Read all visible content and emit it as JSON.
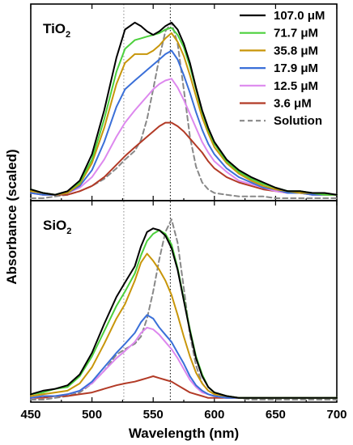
{
  "chart_data": {
    "type": "line",
    "x_axis": {
      "label": "Wavelength (nm)",
      "range": [
        450,
        700
      ],
      "ticks": [
        450,
        500,
        550,
        600,
        650,
        700
      ]
    },
    "y_axis_label": "Absorbance (scaled)",
    "reference_lines": [
      {
        "x": 526,
        "color": "#8a8a8a"
      },
      {
        "x": 564,
        "color": "#000000"
      }
    ],
    "legend": {
      "placement": "top-right (TiO2 panel)",
      "entries": [
        {
          "label": "107.0 μM",
          "color": "#000000",
          "dashed": false
        },
        {
          "label": "71.7 μM",
          "color": "#4cd03c",
          "dashed": false
        },
        {
          "label": "35.8 μM",
          "color": "#c8960a",
          "dashed": false
        },
        {
          "label": "17.9 μM",
          "color": "#3a6fd8",
          "dashed": false
        },
        {
          "label": "12.5 μM",
          "color": "#dd88ee",
          "dashed": false
        },
        {
          "label": "3.6 μM",
          "color": "#b23a26",
          "dashed": false
        },
        {
          "label": "Solution",
          "color": "#888888",
          "dashed": true
        }
      ]
    },
    "panels": [
      {
        "label_base": "TiO",
        "label_sub": "2",
        "ylim": [
          0,
          1.05
        ],
        "x": [
          450,
          460,
          470,
          480,
          490,
          500,
          510,
          520,
          527,
          535,
          540,
          545,
          550,
          555,
          560,
          565,
          570,
          575,
          580,
          585,
          590,
          595,
          600,
          610,
          620,
          630,
          640,
          650,
          660,
          670,
          680,
          690,
          700
        ],
        "series": [
          {
            "name": "107.0 μM",
            "color": "#000000",
            "dashed": false,
            "values": [
              0.05,
              0.03,
              0.02,
              0.04,
              0.1,
              0.25,
              0.5,
              0.8,
              0.96,
              1.0,
              0.98,
              0.95,
              0.93,
              0.95,
              0.98,
              1.0,
              0.96,
              0.88,
              0.77,
              0.63,
              0.5,
              0.4,
              0.32,
              0.22,
              0.16,
              0.12,
              0.09,
              0.06,
              0.04,
              0.04,
              0.03,
              0.03,
              0.02
            ]
          },
          {
            "name": "71.7 μM",
            "color": "#4cd03c",
            "dashed": false,
            "values": [
              0.05,
              0.03,
              0.02,
              0.04,
              0.09,
              0.22,
              0.45,
              0.72,
              0.85,
              0.9,
              0.91,
              0.92,
              0.93,
              0.94,
              0.96,
              0.97,
              0.93,
              0.86,
              0.75,
              0.62,
              0.49,
              0.39,
              0.31,
              0.21,
              0.15,
              0.11,
              0.08,
              0.06,
              0.04,
              0.04,
              0.03,
              0.02,
              0.02
            ]
          },
          {
            "name": "35.8 μM",
            "color": "#c8960a",
            "dashed": false,
            "values": [
              0.04,
              0.03,
              0.02,
              0.03,
              0.08,
              0.2,
              0.4,
              0.65,
              0.77,
              0.82,
              0.82,
              0.82,
              0.84,
              0.87,
              0.91,
              0.94,
              0.89,
              0.81,
              0.7,
              0.58,
              0.46,
              0.37,
              0.29,
              0.2,
              0.14,
              0.1,
              0.07,
              0.05,
              0.04,
              0.03,
              0.03,
              0.02,
              0.02
            ]
          },
          {
            "name": "17.9 μM",
            "color": "#3a6fd8",
            "dashed": false,
            "values": [
              0.03,
              0.02,
              0.02,
              0.03,
              0.07,
              0.16,
              0.32,
              0.52,
              0.62,
              0.67,
              0.7,
              0.73,
              0.76,
              0.79,
              0.82,
              0.84,
              0.79,
              0.7,
              0.6,
              0.49,
              0.39,
              0.31,
              0.25,
              0.17,
              0.12,
              0.09,
              0.06,
              0.05,
              0.03,
              0.03,
              0.02,
              0.02,
              0.02
            ]
          },
          {
            "name": "12.5 μM",
            "color": "#dd88ee",
            "dashed": false,
            "values": [
              0.03,
              0.02,
              0.02,
              0.03,
              0.06,
              0.12,
              0.22,
              0.35,
              0.43,
              0.5,
              0.54,
              0.58,
              0.62,
              0.65,
              0.67,
              0.68,
              0.63,
              0.56,
              0.48,
              0.4,
              0.32,
              0.26,
              0.21,
              0.15,
              0.1,
              0.08,
              0.06,
              0.04,
              0.03,
              0.03,
              0.02,
              0.02,
              0.02
            ]
          },
          {
            "name": "3.6 μM",
            "color": "#b23a26",
            "dashed": false,
            "values": [
              0.03,
              0.02,
              0.02,
              0.02,
              0.04,
              0.07,
              0.12,
              0.19,
              0.24,
              0.29,
              0.32,
              0.35,
              0.38,
              0.41,
              0.43,
              0.43,
              0.41,
              0.38,
              0.34,
              0.3,
              0.26,
              0.21,
              0.17,
              0.12,
              0.09,
              0.07,
              0.05,
              0.04,
              0.03,
              0.03,
              0.02,
              0.02,
              0.02
            ]
          },
          {
            "name": "Solution",
            "color": "#888888",
            "dashed": true,
            "values": [
              0.0,
              0.0,
              0.01,
              0.02,
              0.04,
              0.07,
              0.11,
              0.17,
              0.22,
              0.27,
              0.33,
              0.45,
              0.62,
              0.8,
              0.95,
              1.0,
              0.88,
              0.62,
              0.35,
              0.18,
              0.09,
              0.05,
              0.03,
              0.02,
              0.01,
              0.01,
              0.01,
              0.0,
              0.0,
              0.0,
              0.0,
              0.0,
              0.0
            ]
          }
        ]
      },
      {
        "label_base": "SiO",
        "label_sub": "2",
        "ylim": [
          0,
          1.05
        ],
        "x": [
          450,
          460,
          470,
          480,
          490,
          500,
          510,
          520,
          527,
          535,
          540,
          545,
          550,
          555,
          560,
          565,
          570,
          575,
          580,
          585,
          590,
          595,
          600,
          610,
          620,
          630,
          640,
          650,
          660,
          670,
          680,
          690,
          700
        ],
        "series": [
          {
            "name": "107.0 μM",
            "color": "#000000",
            "dashed": false,
            "values": [
              0.03,
              0.05,
              0.06,
              0.08,
              0.14,
              0.26,
              0.42,
              0.57,
              0.65,
              0.74,
              0.85,
              0.93,
              0.95,
              0.94,
              0.91,
              0.84,
              0.72,
              0.55,
              0.38,
              0.23,
              0.13,
              0.07,
              0.04,
              0.02,
              0.01,
              0.01,
              0.01,
              0.01,
              0.01,
              0.01,
              0.01,
              0.01,
              0.01
            ]
          },
          {
            "name": "71.7 μM",
            "color": "#4cd03c",
            "dashed": false,
            "values": [
              0.03,
              0.04,
              0.06,
              0.07,
              0.13,
              0.24,
              0.38,
              0.52,
              0.6,
              0.7,
              0.8,
              0.88,
              0.92,
              0.94,
              0.92,
              0.86,
              0.73,
              0.56,
              0.39,
              0.24,
              0.14,
              0.07,
              0.04,
              0.02,
              0.01,
              0.01,
              0.01,
              0.01,
              0.01,
              0.01,
              0.01,
              0.01,
              0.01
            ]
          },
          {
            "name": "35.8 μM",
            "color": "#c8960a",
            "dashed": false,
            "values": [
              0.02,
              0.03,
              0.04,
              0.05,
              0.09,
              0.18,
              0.31,
              0.45,
              0.53,
              0.66,
              0.76,
              0.81,
              0.77,
              0.72,
              0.66,
              0.58,
              0.47,
              0.35,
              0.24,
              0.15,
              0.09,
              0.05,
              0.03,
              0.02,
              0.01,
              0.01,
              0.01,
              0.01,
              0.01,
              0.01,
              0.01,
              0.01,
              0.01
            ]
          },
          {
            "name": "17.9 μM",
            "color": "#3a6fd8",
            "dashed": false,
            "values": [
              0.01,
              0.02,
              0.02,
              0.03,
              0.05,
              0.1,
              0.18,
              0.26,
              0.31,
              0.37,
              0.43,
              0.47,
              0.45,
              0.4,
              0.36,
              0.32,
              0.26,
              0.2,
              0.13,
              0.08,
              0.05,
              0.03,
              0.02,
              0.01,
              0.01,
              0.01,
              0.01,
              0.01,
              0.01,
              0.01,
              0.01,
              0.01,
              0.01
            ]
          },
          {
            "name": "12.5 μM",
            "color": "#dd88ee",
            "dashed": false,
            "values": [
              0.01,
              0.02,
              0.02,
              0.03,
              0.05,
              0.09,
              0.16,
              0.23,
              0.27,
              0.32,
              0.37,
              0.4,
              0.39,
              0.36,
              0.32,
              0.28,
              0.23,
              0.17,
              0.11,
              0.07,
              0.04,
              0.03,
              0.02,
              0.01,
              0.01,
              0.01,
              0.01,
              0.01,
              0.01,
              0.01,
              0.01,
              0.01,
              0.01
            ]
          },
          {
            "name": "3.6 μM",
            "color": "#b23a26",
            "dashed": false,
            "values": [
              0.01,
              0.01,
              0.02,
              0.02,
              0.03,
              0.04,
              0.06,
              0.08,
              0.09,
              0.1,
              0.11,
              0.12,
              0.13,
              0.12,
              0.11,
              0.1,
              0.08,
              0.06,
              0.04,
              0.03,
              0.02,
              0.01,
              0.01,
              0.01,
              0.01,
              0.01,
              0.01,
              0.01,
              0.01,
              0.01,
              0.01,
              0.01,
              0.01
            ]
          },
          {
            "name": "Solution",
            "color": "#888888",
            "dashed": true,
            "values": [
              0.0,
              0.0,
              0.01,
              0.02,
              0.04,
              0.09,
              0.16,
              0.25,
              0.28,
              0.31,
              0.35,
              0.45,
              0.6,
              0.78,
              0.93,
              1.0,
              0.87,
              0.62,
              0.36,
              0.19,
              0.09,
              0.05,
              0.03,
              0.01,
              0.01,
              0.0,
              0.0,
              0.0,
              0.0,
              0.0,
              0.0,
              0.0,
              0.0
            ]
          }
        ]
      }
    ]
  }
}
